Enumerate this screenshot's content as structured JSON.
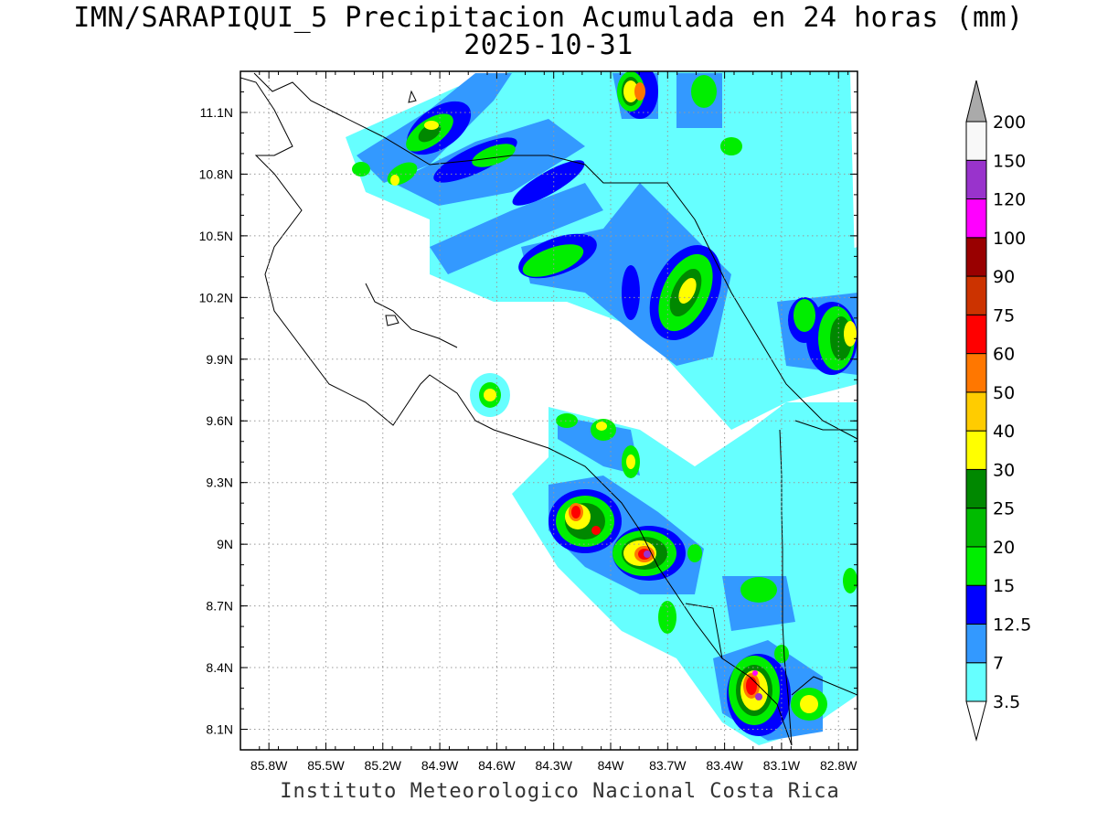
{
  "title_line1": "IMN/SARAPIQUI_5 Precipitacion Acumulada en 24 horas (mm)",
  "title_line2": "2025-10-31",
  "footer": "Instituto Meteorologico Nacional Costa Rica",
  "map": {
    "lon_range": [
      -85.95,
      -82.7
    ],
    "lat_range": [
      8.0,
      11.3
    ],
    "lon_ticks": [
      -85.8,
      -85.5,
      -85.2,
      -84.9,
      -84.6,
      -84.3,
      -84.0,
      -83.7,
      -83.4,
      -83.1,
      -82.8
    ],
    "lon_labels": [
      "85.8W",
      "85.5W",
      "85.2W",
      "84.9W",
      "84.6W",
      "84.3W",
      "84W",
      "83.7W",
      "83.4W",
      "83.1W",
      "82.8W"
    ],
    "lat_ticks": [
      8.1,
      8.4,
      8.7,
      9.0,
      9.3,
      9.6,
      9.9,
      10.2,
      10.5,
      10.8,
      11.1
    ],
    "lat_labels": [
      "8.1N",
      "8.4N",
      "8.7N",
      "9N",
      "9.3N",
      "9.6N",
      "9.9N",
      "10.2N",
      "10.5N",
      "10.8N",
      "11.1N"
    ],
    "grid": true
  },
  "colorbar": {
    "labels": [
      "3.5",
      "7",
      "12.5",
      "15",
      "20",
      "25",
      "30",
      "40",
      "50",
      "60",
      "75",
      "90",
      "100",
      "120",
      "150",
      "200"
    ],
    "colors": [
      "#66ffff",
      "#3399ff",
      "#0000ff",
      "#00ee00",
      "#00bb00",
      "#008800",
      "#ffff00",
      "#ffcc00",
      "#ff7700",
      "#ff0000",
      "#cc3300",
      "#990000",
      "#ff00ff",
      "#9933cc",
      "#f8f8f8",
      "#aaaaaa"
    ]
  }
}
